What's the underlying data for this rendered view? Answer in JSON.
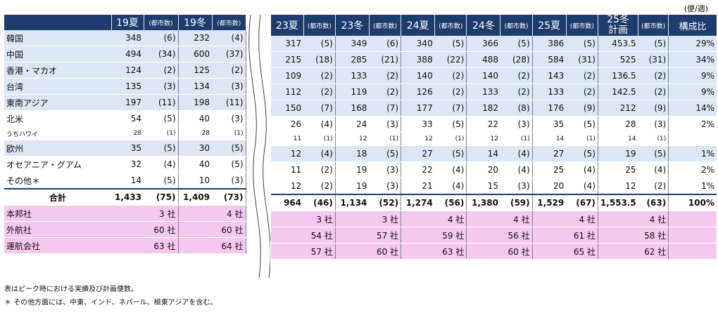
{
  "unit": "(便/週)",
  "headers": {
    "name": "",
    "left": [
      {
        "season": "19夏",
        "count": "(都市数)"
      },
      {
        "season": "19冬",
        "count": "(都市数)"
      }
    ],
    "right": [
      {
        "season": "23夏",
        "count": "(都市数)"
      },
      {
        "season": "23冬",
        "count": "(都市数)"
      },
      {
        "season": "24夏",
        "count": "(都市数)"
      },
      {
        "season": "24冬",
        "count": "(都市数)"
      },
      {
        "season": "25夏",
        "count": "(都市数)"
      },
      {
        "season": "25冬\n計画",
        "count": "(都市数)"
      }
    ],
    "pct": "構成比"
  },
  "rows": [
    {
      "name": "韓国",
      "v": [
        "348",
        "(6)",
        "232",
        "(4)",
        "317",
        "(5)",
        "349",
        "(6)",
        "340",
        "(5)",
        "366",
        "(5)",
        "386",
        "(5)",
        "453.5",
        "(5)"
      ],
      "pct": "29%",
      "style": "blue"
    },
    {
      "name": "中国",
      "v": [
        "494",
        "(34)",
        "600",
        "(37)",
        "215",
        "(18)",
        "285",
        "(21)",
        "388",
        "(22)",
        "488",
        "(28)",
        "584",
        "(31)",
        "525",
        "(31)"
      ],
      "pct": "34%",
      "style": "blue"
    },
    {
      "name": "香港・マカオ",
      "v": [
        "124",
        "(2)",
        "125",
        "(2)",
        "109",
        "(2)",
        "133",
        "(2)",
        "140",
        "(2)",
        "140",
        "(2)",
        "143",
        "(2)",
        "136.5",
        "(2)"
      ],
      "pct": "9%",
      "style": "blue"
    },
    {
      "name": "台湾",
      "v": [
        "135",
        "(3)",
        "134",
        "(3)",
        "112",
        "(2)",
        "119",
        "(2)",
        "126",
        "(2)",
        "133",
        "(2)",
        "133",
        "(2)",
        "142.5",
        "(2)"
      ],
      "pct": "9%",
      "style": "blue"
    },
    {
      "name": "東南アジア",
      "v": [
        "197",
        "(11)",
        "198",
        "(11)",
        "150",
        "(7)",
        "168",
        "(7)",
        "177",
        "(7)",
        "182",
        "(8)",
        "176",
        "(9)",
        "212",
        "(9)"
      ],
      "pct": "14%",
      "style": "blue"
    },
    {
      "name": "北米",
      "v": [
        "54",
        "(5)",
        "40",
        "(3)",
        "26",
        "(4)",
        "24",
        "(3)",
        "33",
        "(5)",
        "22",
        "(3)",
        "35",
        "(5)",
        "28",
        "(3)"
      ],
      "pct": "2%",
      "style": "white"
    },
    {
      "name": "うちハワイ",
      "v": [
        "28",
        "(1)",
        "28",
        "(1)",
        "11",
        "(1)",
        "12",
        "(1)",
        "12",
        "(1)",
        "12",
        "(1)",
        "14",
        "(1)",
        "14",
        "(1)"
      ],
      "pct": "",
      "style": "small"
    },
    {
      "name": "欧州",
      "v": [
        "35",
        "(5)",
        "30",
        "(5)",
        "12",
        "(4)",
        "18",
        "(5)",
        "27",
        "(5)",
        "14",
        "(4)",
        "27",
        "(5)",
        "19",
        "(5)"
      ],
      "pct": "1%",
      "style": "blue"
    },
    {
      "name": "オセアニア・グアム",
      "v": [
        "32",
        "(4)",
        "40",
        "(5)",
        "11",
        "(2)",
        "19",
        "(3)",
        "22",
        "(4)",
        "20",
        "(4)",
        "25",
        "(4)",
        "25",
        "(4)"
      ],
      "pct": "2%",
      "style": "white"
    },
    {
      "name": "その他＊",
      "v": [
        "14",
        "(5)",
        "10",
        "(3)",
        "12",
        "(2)",
        "19",
        "(3)",
        "21",
        "(4)",
        "15",
        "(3)",
        "20",
        "(4)",
        "12",
        "(2)"
      ],
      "pct": "1%",
      "style": "white"
    }
  ],
  "total": {
    "name": "合計",
    "v": [
      "1,433",
      "(75)",
      "1,409",
      "(73)",
      "964",
      "(46)",
      "1,134",
      "(52)",
      "1,274",
      "(56)",
      "1,380",
      "(59)",
      "1,529",
      "(67)",
      "1,553.5",
      "(63)"
    ],
    "pct": "100%"
  },
  "carriers": [
    {
      "name": "本邦社",
      "v": [
        "3 社",
        "4 社",
        "3 社",
        "3 社",
        "4 社",
        "4 社",
        "4 社",
        "4 社"
      ]
    },
    {
      "name": "外航社",
      "v": [
        "60 社",
        "60 社",
        "54 社",
        "57 社",
        "59 社",
        "56 社",
        "61 社",
        "58 社"
      ]
    },
    {
      "name": "運航会社",
      "v": [
        "63 社",
        "64 社",
        "57 社",
        "60 社",
        "63 社",
        "60 社",
        "65 社",
        "62 社"
      ]
    }
  ],
  "notes": [
    "表はピーク時における実績及び計画便数。",
    "＊ その他方面には、中東、インド、ネパール、極東アジアを含む。"
  ]
}
